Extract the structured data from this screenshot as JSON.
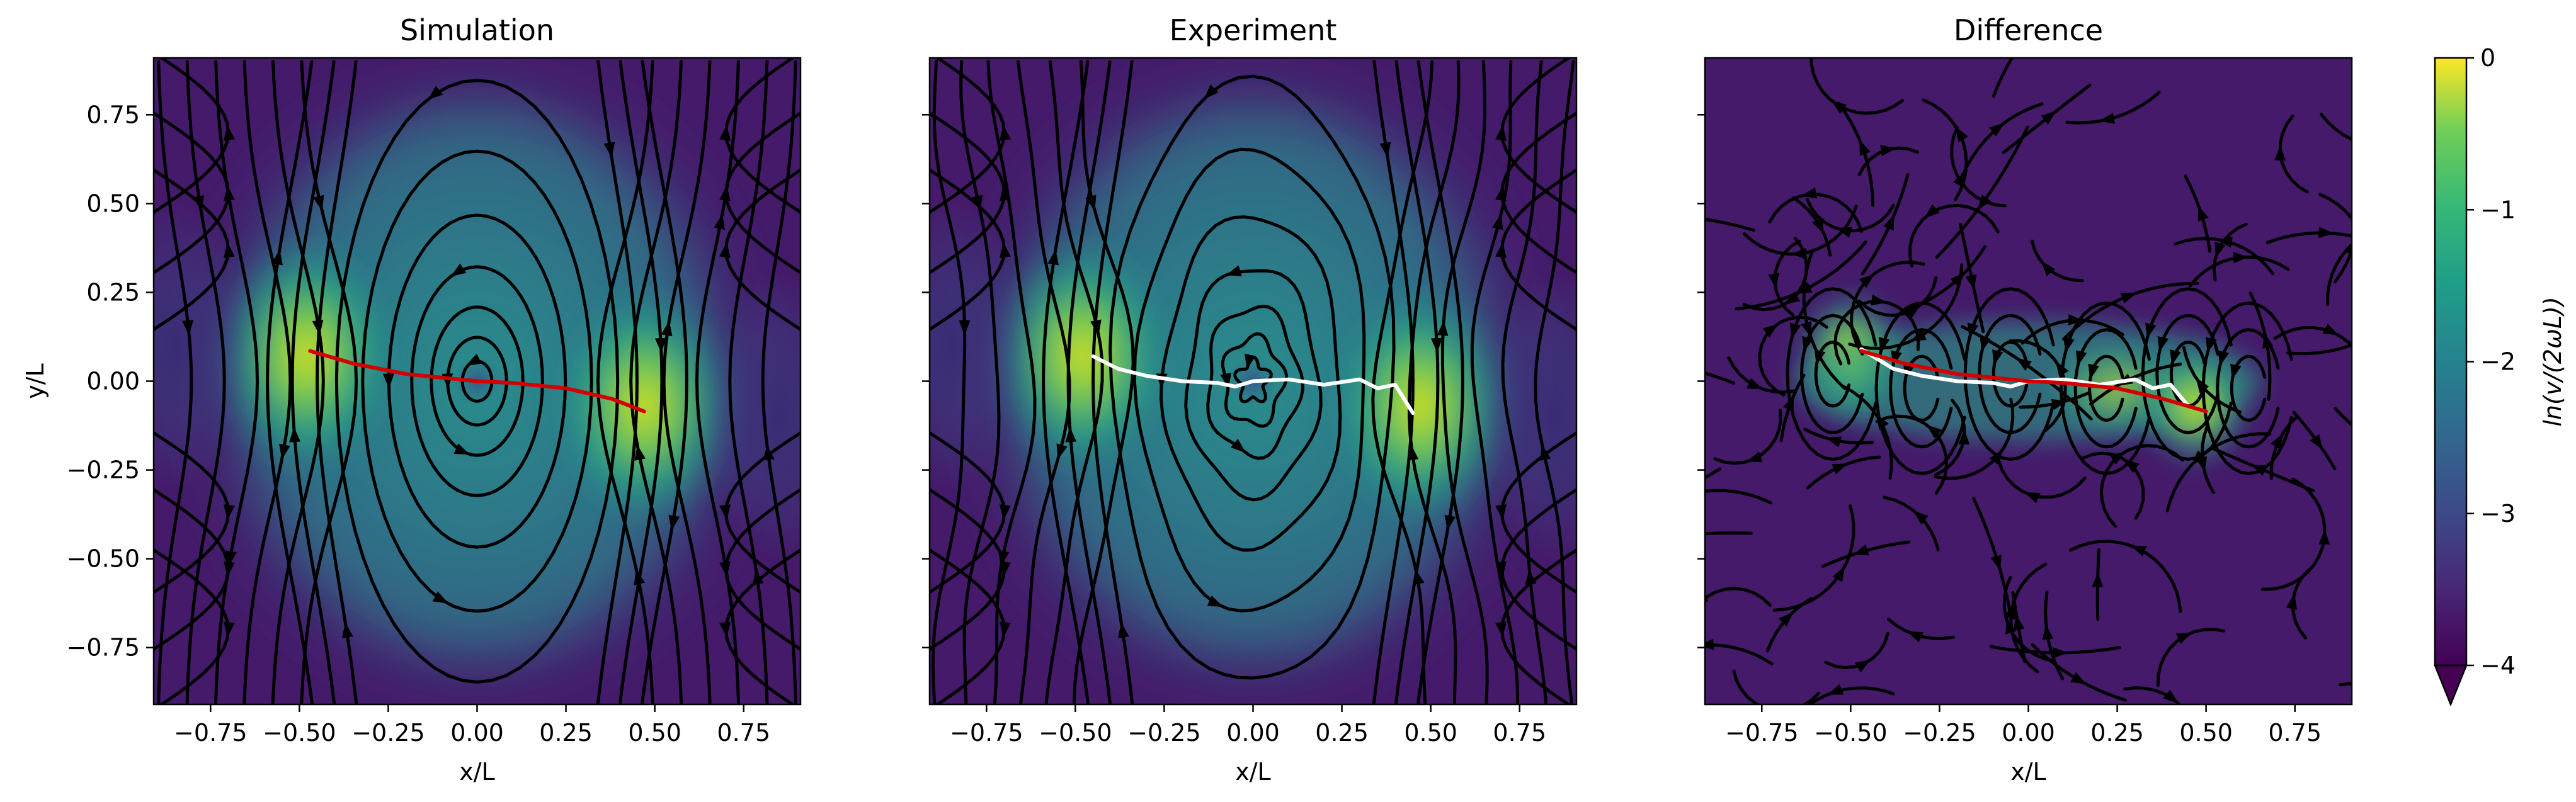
{
  "chart_data": [
    {
      "type": "heatmap",
      "subtype": "streamplot",
      "title": "Simulation",
      "xlabel": "x/L",
      "ylabel": "y/L",
      "xlim": [
        -0.91,
        0.91
      ],
      "ylim": [
        -0.91,
        0.91
      ],
      "xticks": [
        "−0.75",
        "−0.50",
        "−0.25",
        "0.00",
        "0.25",
        "0.50",
        "0.75"
      ],
      "yticks": [
        "−0.75",
        "−0.50",
        "−0.25",
        "0.00",
        "0.25",
        "0.50",
        "0.75"
      ],
      "colormap": "viridis",
      "field": "ln(v/(2ωL))",
      "vortex_center": [
        0.0,
        0.0
      ],
      "curve": {
        "color": "#d40000",
        "x": [
          -0.47,
          -0.35,
          -0.2,
          -0.05,
          0.0,
          0.1,
          0.25,
          0.38,
          0.47
        ],
        "y": [
          0.085,
          0.05,
          0.02,
          0.005,
          0.0,
          -0.005,
          -0.02,
          -0.05,
          -0.085
        ]
      }
    },
    {
      "type": "heatmap",
      "subtype": "streamplot",
      "title": "Experiment",
      "xlabel": "x/L",
      "xlim": [
        -0.91,
        0.91
      ],
      "ylim": [
        -0.91,
        0.91
      ],
      "xticks": [
        "−0.75",
        "−0.50",
        "−0.25",
        "0.00",
        "0.25",
        "0.50",
        "0.75"
      ],
      "colormap": "viridis",
      "field": "ln(v/(2ωL))",
      "vortex_center": [
        0.0,
        0.0
      ],
      "curve": {
        "color": "#ffffff",
        "x": [
          -0.45,
          -0.38,
          -0.3,
          -0.2,
          -0.1,
          -0.05,
          0.0,
          0.1,
          0.2,
          0.3,
          0.35,
          0.4,
          0.45
        ],
        "y": [
          0.07,
          0.035,
          0.015,
          0.0,
          -0.005,
          -0.015,
          0.0,
          0.005,
          -0.01,
          0.005,
          -0.02,
          -0.01,
          -0.09
        ]
      }
    },
    {
      "type": "heatmap",
      "subtype": "streamplot",
      "title": "Difference",
      "xlabel": "x/L",
      "xlim": [
        -0.91,
        0.91
      ],
      "ylim": [
        -0.91,
        0.91
      ],
      "xticks": [
        "−0.75",
        "−0.50",
        "−0.25",
        "0.00",
        "0.25",
        "0.50",
        "0.75"
      ],
      "colormap": "viridis",
      "field": "ln(v/(2ωL))",
      "curves": [
        {
          "color": "#ffffff",
          "x": [
            -0.47,
            -0.38,
            -0.3,
            -0.2,
            -0.1,
            -0.05,
            0.0,
            0.1,
            0.2,
            0.3,
            0.35,
            0.4,
            0.45
          ],
          "y": [
            0.09,
            0.035,
            0.015,
            0.0,
            -0.005,
            -0.015,
            0.0,
            0.005,
            -0.01,
            0.005,
            -0.02,
            -0.01,
            -0.07
          ]
        },
        {
          "color": "#d40000",
          "x": [
            -0.47,
            -0.35,
            -0.2,
            -0.05,
            0.0,
            0.1,
            0.25,
            0.38,
            0.5
          ],
          "y": [
            0.085,
            0.05,
            0.02,
            0.005,
            0.0,
            -0.005,
            -0.02,
            -0.05,
            -0.085
          ]
        }
      ]
    }
  ],
  "colorbar": {
    "label": "ln(v/(2ωL))",
    "range": [
      -4,
      0
    ],
    "ticks": [
      "0",
      "−1",
      "−2",
      "−3",
      "−4"
    ],
    "extend": "min",
    "colormap": "viridis"
  }
}
